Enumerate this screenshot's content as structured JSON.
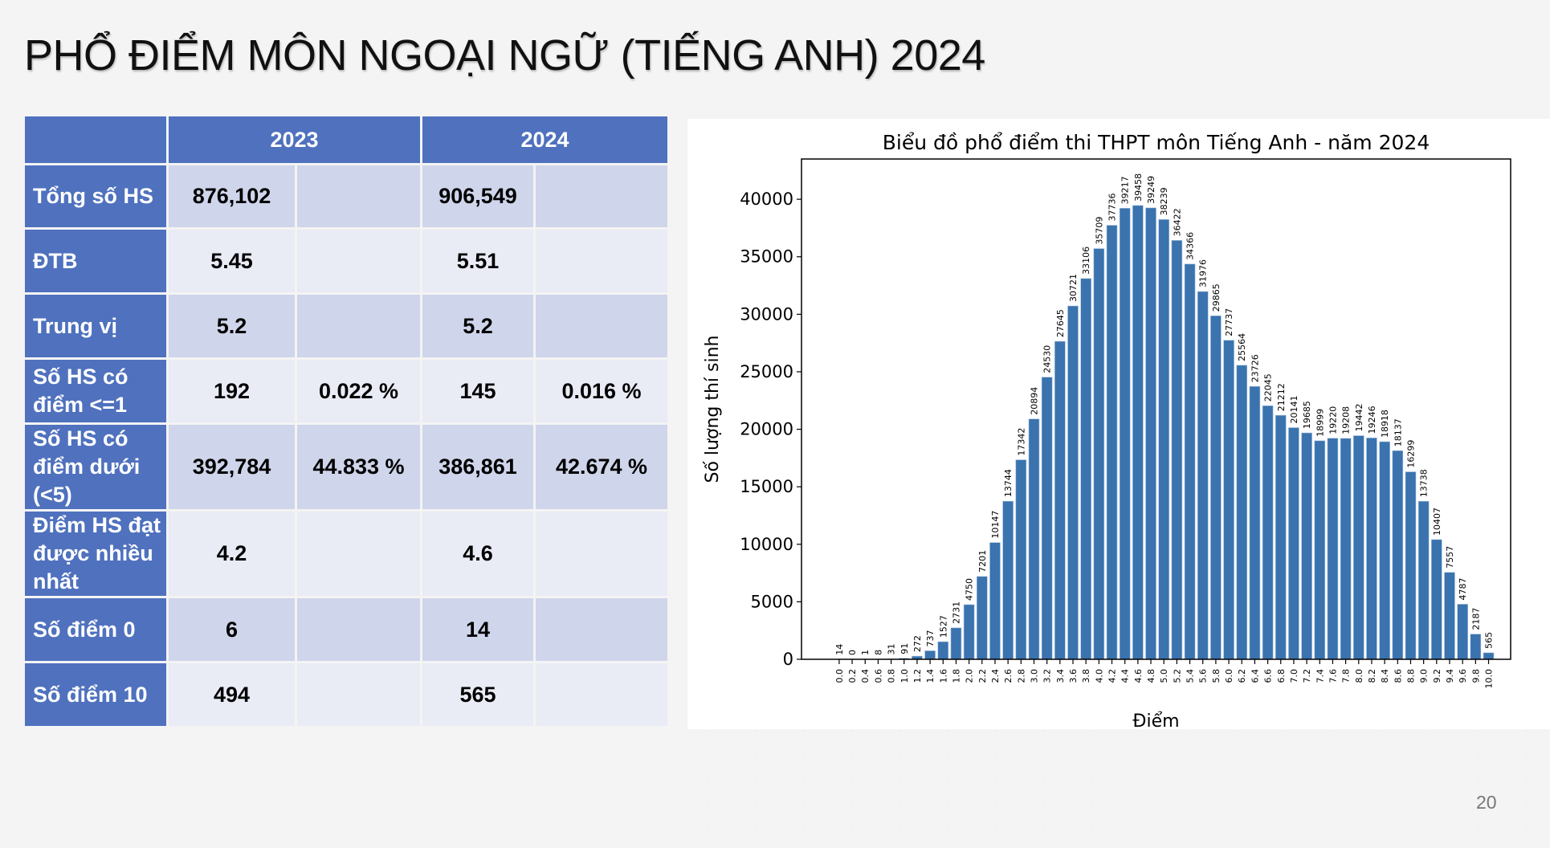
{
  "page": {
    "title": "PHỔ ĐIỂM MÔN NGOẠI NGỮ (TIẾNG ANH) 2024",
    "page_number": "20"
  },
  "table": {
    "headers": [
      "2023",
      "2024"
    ],
    "rows": [
      {
        "label": "Tổng số HS",
        "v2023": "876,102",
        "p2023": "",
        "v2024": "906,549",
        "p2024": ""
      },
      {
        "label": "ĐTB",
        "v2023": "5.45",
        "p2023": "",
        "v2024": "5.51",
        "p2024": ""
      },
      {
        "label": "Trung vị",
        "v2023": "5.2",
        "p2023": "",
        "v2024": "5.2",
        "p2024": ""
      },
      {
        "label": "Số HS có điểm <=1",
        "v2023": "192",
        "p2023": "0.022 %",
        "v2024": "145",
        "p2024": "0.016 %"
      },
      {
        "label": "Số HS có điểm dưới (<5)",
        "v2023": "392,784",
        "p2023": "44.833 %",
        "v2024": "386,861",
        "p2024": "42.674 %"
      },
      {
        "label": "Điểm HS đạt được nhiều nhất",
        "v2023": "4.2",
        "p2023": "",
        "v2024": "4.6",
        "p2024": ""
      },
      {
        "label": "Số điểm 0",
        "v2023": "6",
        "p2023": "",
        "v2024": "14",
        "p2024": ""
      },
      {
        "label": "Số điểm 10",
        "v2023": "494",
        "p2023": "",
        "v2024": "565",
        "p2024": ""
      }
    ],
    "colors": {
      "header": "#4f71be",
      "dark_cell": "#cfd5ea",
      "light_cell": "#e9ebf5",
      "highlight": "#e53223"
    }
  },
  "chart_data": {
    "type": "bar",
    "title": "Biểu đồ phổ điểm thi THPT môn Tiếng Anh - năm 2024",
    "xlabel": "Điểm",
    "ylabel": "Số lượng thí sinh",
    "categories": [
      "0.0",
      "0.2",
      "0.4",
      "0.6",
      "0.8",
      "1.0",
      "1.2",
      "1.4",
      "1.6",
      "1.8",
      "2.0",
      "2.2",
      "2.4",
      "2.6",
      "2.8",
      "3.0",
      "3.2",
      "3.4",
      "3.6",
      "3.8",
      "4.0",
      "4.2",
      "4.4",
      "4.6",
      "4.8",
      "5.0",
      "5.2",
      "5.4",
      "5.6",
      "5.8",
      "6.0",
      "6.2",
      "6.4",
      "6.6",
      "6.8",
      "7.0",
      "7.2",
      "7.4",
      "7.6",
      "7.8",
      "8.0",
      "8.2",
      "8.4",
      "8.6",
      "8.8",
      "9.0",
      "9.2",
      "9.4",
      "9.6",
      "9.8",
      "10.0"
    ],
    "values": [
      14,
      0,
      1,
      8,
      31,
      91,
      272,
      737,
      1527,
      2731,
      4750,
      7201,
      10147,
      13744,
      17342,
      20894,
      24530,
      27645,
      30721,
      33106,
      35709,
      37736,
      39217,
      39458,
      39249,
      38239,
      36422,
      34366,
      31976,
      29865,
      27737,
      25564,
      23726,
      22045,
      21212,
      20141,
      19685,
      18999,
      19220,
      19208,
      19442,
      19246,
      18918,
      18137,
      16299,
      13738,
      10407,
      7557,
      4787,
      2187,
      565
    ],
    "yticks": [
      0,
      5000,
      10000,
      15000,
      20000,
      25000,
      30000,
      35000,
      40000
    ],
    "ylim": [
      0,
      43500
    ],
    "grid": false,
    "bar_color": "#3a73ae",
    "data_labels": true
  }
}
